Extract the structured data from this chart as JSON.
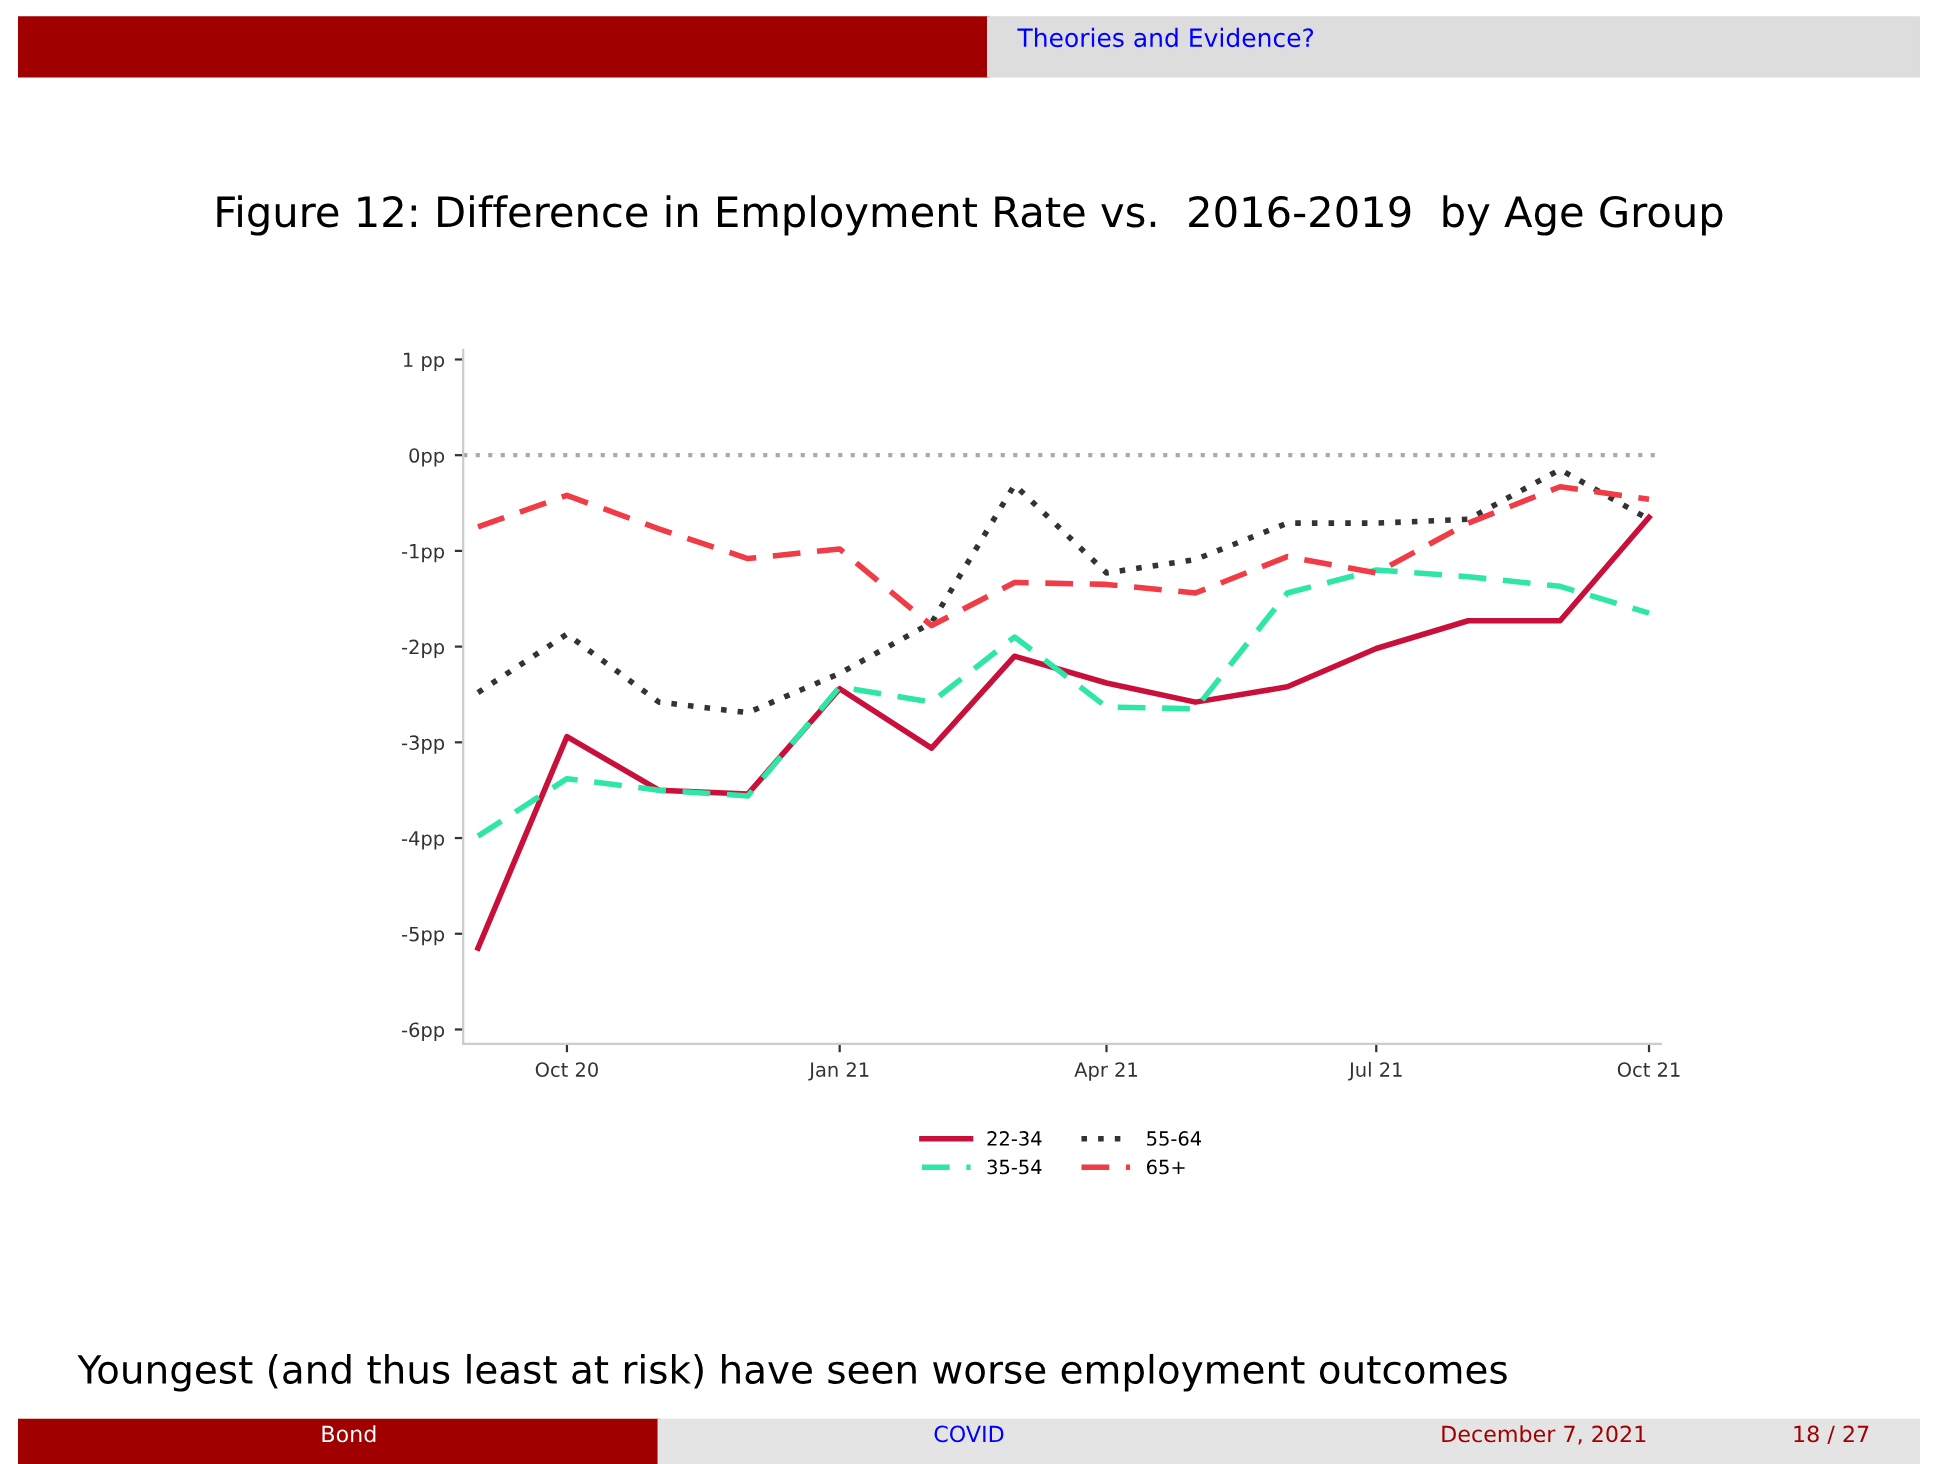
{
  "chart_data": {
    "type": "line",
    "title": "Figure 12: Difference in Employment Rate vs.  2016-2019  by Age Group",
    "x": [
      "2020-09",
      "2020-10",
      "2020-11",
      "2020-12",
      "2021-01",
      "2021-02",
      "2021-03",
      "2021-04",
      "2021-05",
      "2021-06",
      "2021-07",
      "2021-08",
      "2021-09",
      "2021-10"
    ],
    "series": [
      {
        "name": "22-34",
        "color": "#c8103a",
        "line_style": "solid",
        "values": [
          -5.15,
          -2.94,
          -3.5,
          -3.54,
          -2.44,
          -3.06,
          -2.1,
          -2.38,
          -2.58,
          -2.42,
          -2.02,
          -1.73,
          -1.73,
          -0.65
        ]
      },
      {
        "name": "35-54",
        "color": "#2ee6a6",
        "line_style": "dashed",
        "values": [
          -3.98,
          -3.38,
          -3.5,
          -3.56,
          -2.42,
          -2.58,
          -1.9,
          -2.63,
          -2.65,
          -1.44,
          -1.2,
          -1.27,
          -1.37,
          -1.65
        ]
      },
      {
        "name": "55-64",
        "color": "#333333",
        "line_style": "dotted",
        "values": [
          -2.48,
          -1.87,
          -2.58,
          -2.69,
          -2.28,
          -1.75,
          -0.31,
          -1.23,
          -1.09,
          -0.71,
          -0.71,
          -0.67,
          -0.15,
          -0.67
        ]
      },
      {
        "name": "65+",
        "color": "#f03c46",
        "line_style": "dashed",
        "values": [
          -0.75,
          -0.42,
          -0.77,
          -1.08,
          -0.98,
          -1.78,
          -1.33,
          -1.35,
          -1.44,
          -1.06,
          -1.23,
          -0.71,
          -0.33,
          -0.46
        ]
      }
    ],
    "xlim": [
      "2020-08-27",
      "2021-10-05"
    ],
    "xticks": [
      {
        "value": "2020-10",
        "label": "Oct 20"
      },
      {
        "value": "2021-01",
        "label": "Jan 21"
      },
      {
        "value": "2021-04",
        "label": "Apr 21"
      },
      {
        "value": "2021-07",
        "label": "Jul 21"
      },
      {
        "value": "2021-10",
        "label": "Oct 21"
      }
    ],
    "ylim": [
      -6.15,
      1.1
    ],
    "yticks": [
      {
        "value": 1,
        "label": "1 pp"
      },
      {
        "value": 0,
        "label": "0pp"
      },
      {
        "value": -1,
        "label": "-1pp"
      },
      {
        "value": -2,
        "label": "-2pp"
      },
      {
        "value": -3,
        "label": "-3pp"
      },
      {
        "value": -4,
        "label": "-4pp"
      },
      {
        "value": -5,
        "label": "-5pp"
      },
      {
        "value": -6,
        "label": "-6pp"
      }
    ],
    "ref_lines": [
      {
        "axis": "y",
        "value": 0,
        "color": "#aaaaaa",
        "line_style": "dotted"
      }
    ],
    "grid": false,
    "legend": "bottom",
    "annotations": [
      "Youngest (and thus least at risk) have seen worse employment outcomes",
      "Theories and Evidence?",
      "Bond",
      "COVID",
      "December 7, 2021",
      "18 / 27"
    ]
  }
}
